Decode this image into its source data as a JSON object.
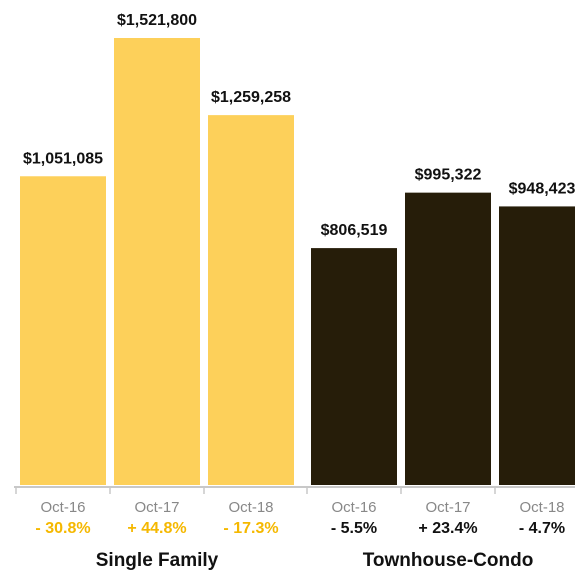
{
  "chart_data": {
    "type": "bar",
    "title": "",
    "xlabel": "",
    "ylabel": "",
    "ylim": [
      0,
      1600000
    ],
    "grid": false,
    "groups": [
      {
        "name": "Single Family",
        "color": "#FDD05A",
        "change_color": "#F5B800",
        "bars": [
          {
            "period": "Oct-16",
            "value": 1051085,
            "value_label": "$1,051,085",
            "change": "- 30.8%"
          },
          {
            "period": "Oct-17",
            "value": 1521800,
            "value_label": "$1,521,800",
            "change": "+ 44.8%"
          },
          {
            "period": "Oct-18",
            "value": 1259258,
            "value_label": "$1,259,258",
            "change": "- 17.3%"
          }
        ]
      },
      {
        "name": "Townhouse-Condo",
        "color": "#261D09",
        "change_color": "#111111",
        "bars": [
          {
            "period": "Oct-16",
            "value": 806519,
            "value_label": "$806,519",
            "change": "- 5.5%"
          },
          {
            "period": "Oct-17",
            "value": 995322,
            "value_label": "$995,322",
            "change": "+ 23.4%"
          },
          {
            "period": "Oct-18",
            "value": 948423,
            "value_label": "$948,423",
            "change": "- 4.7%"
          }
        ]
      }
    ]
  }
}
